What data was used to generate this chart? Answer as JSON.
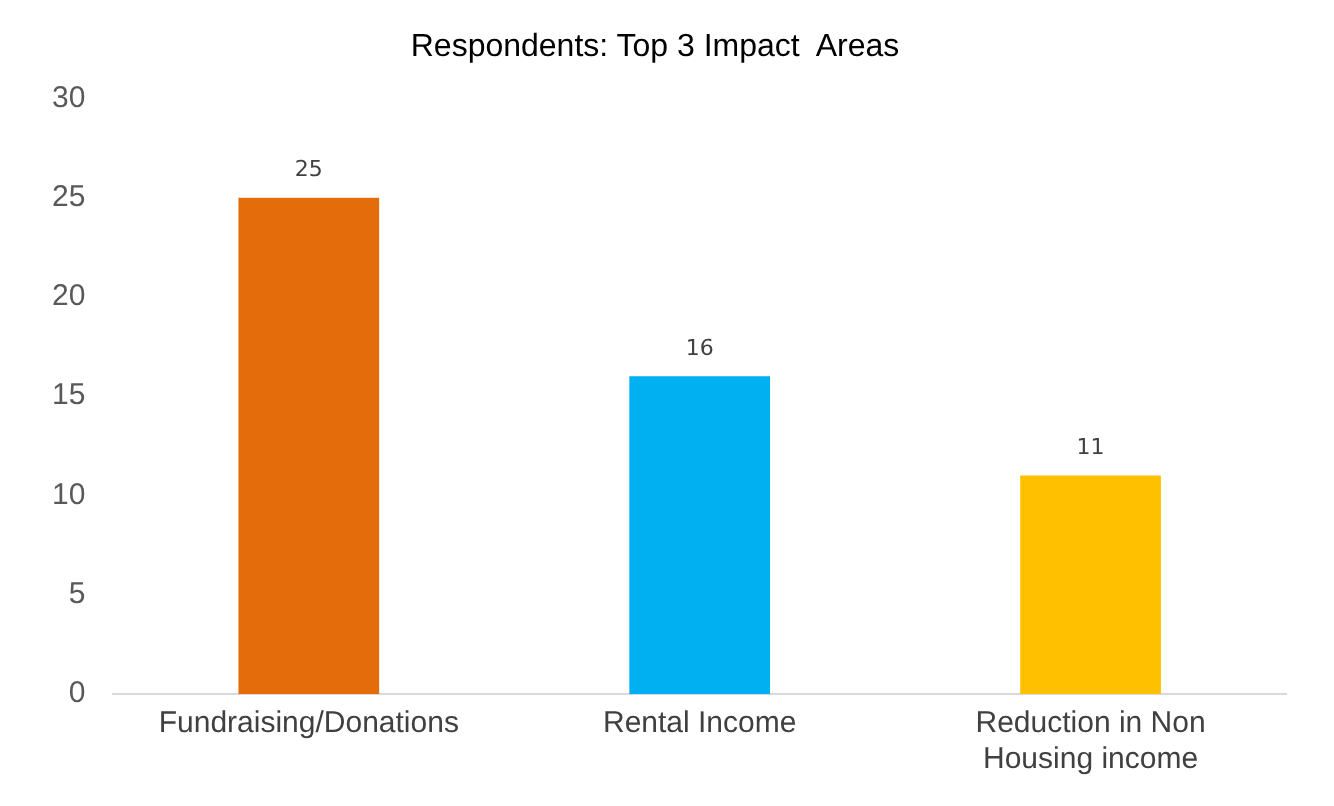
{
  "chart_data": {
    "type": "bar",
    "title": "Respondents: Top 3 Impact  Areas",
    "categories": [
      "Fundraising/Donations",
      "Rental Income",
      "Reduction in Non Housing income"
    ],
    "values": [
      25,
      16,
      11
    ],
    "colors": [
      "#e46c0a",
      "#00b0f0",
      "#ffc000"
    ],
    "ylim": [
      0,
      30
    ],
    "yticks": [
      0,
      5,
      10,
      15,
      20,
      25,
      30
    ],
    "grid": false,
    "legend": false,
    "data_labels": true
  }
}
